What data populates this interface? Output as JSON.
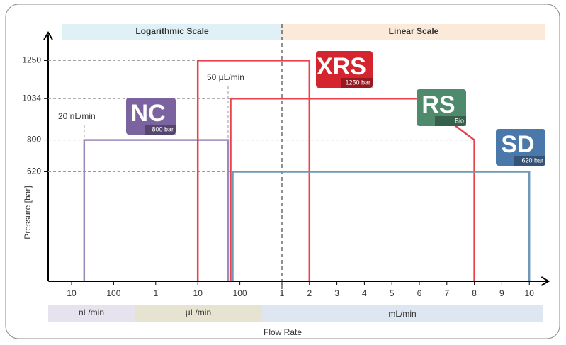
{
  "chart_data": {
    "type": "line",
    "y_label": "Pressure [bar]",
    "x_label": "Flow Rate",
    "top_bands": [
      "Logarithmic Scale",
      "Linear Scale"
    ],
    "unit_bands": [
      "nL/min",
      "µL/min",
      "mL/min"
    ],
    "annotations": [
      "20 nL/min",
      "50 µL/min"
    ],
    "ylim": [
      0,
      1400
    ],
    "yticks": [
      620,
      800,
      1034,
      1250
    ],
    "xlim": [
      -0.55,
      14.7
    ],
    "xticks": [
      {
        "value": 0,
        "label": "10"
      },
      {
        "value": 1,
        "label": "100"
      },
      {
        "value": 2,
        "label": "1"
      },
      {
        "value": 3,
        "label": "10"
      },
      {
        "value": 4,
        "label": "100"
      },
      {
        "value": 5,
        "label": "1"
      },
      {
        "value": 6,
        "label": "2"
      },
      {
        "value": 7,
        "label": "3"
      },
      {
        "value": 8,
        "label": "4"
      },
      {
        "value": 9,
        "label": "5"
      },
      {
        "value": 10,
        "label": "6"
      },
      {
        "value": 11,
        "label": "7"
      },
      {
        "value": 12,
        "label": "8"
      },
      {
        "value": 13,
        "label": "9"
      },
      {
        "value": 14,
        "label": "10"
      }
    ],
    "series": [
      {
        "name": "NC",
        "rating": "800 bar",
        "color": "#9b8bbb",
        "badge_color": "#7b63a0",
        "x": [
          0.3,
          0.3,
          3.72,
          3.72
        ],
        "values": [
          0,
          800,
          800,
          0
        ]
      },
      {
        "name": "XRS",
        "rating": "1250 bar",
        "color": "#e8424c",
        "badge_color": "#d4252e",
        "x": [
          3,
          3,
          6,
          6
        ],
        "values": [
          0,
          1250,
          1250,
          0
        ]
      },
      {
        "name": "RS",
        "rating": "Bio",
        "color": "#e8424c",
        "badge_color": "#4f8a6d",
        "x": [
          3.78,
          3.78,
          10,
          12,
          12
        ],
        "values": [
          0,
          1034,
          1034,
          800,
          0
        ]
      },
      {
        "name": "SD",
        "rating": "620 bar",
        "color": "#6f98b8",
        "badge_color": "#4b78ab",
        "x": [
          3.83,
          3.83,
          14,
          14
        ],
        "values": [
          0,
          620,
          620,
          0
        ]
      }
    ]
  }
}
